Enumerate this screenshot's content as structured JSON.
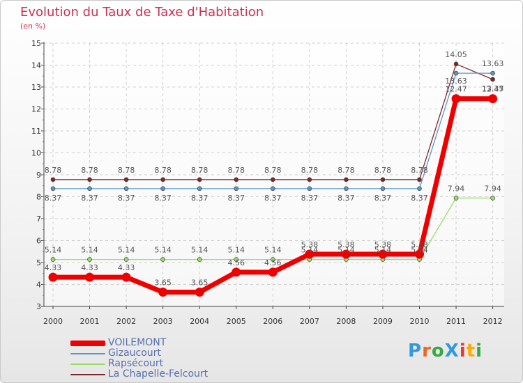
{
  "title": "Evolution du Taux de Taxe d'Habitation",
  "subtitle": "(en %)",
  "logo": {
    "text": "ProXiti",
    "colors": [
      "#3399dd",
      "#ee6622",
      "#33aa44",
      "#3399dd",
      "#ee3333",
      "#ffaa00",
      "#33aa44"
    ]
  },
  "chart_data": {
    "type": "line",
    "title": "Evolution du Taux de Taxe d'Habitation",
    "ylabel": "(en %)",
    "xlabel": "",
    "ylim": [
      3,
      15
    ],
    "yticks": [
      "3",
      "4",
      "5",
      "6",
      "7",
      "8",
      "9",
      "10",
      "11",
      "12",
      "13",
      "14",
      "15"
    ],
    "categories": [
      "2000",
      "2001",
      "2002",
      "2003",
      "2004",
      "2005",
      "2006",
      "2007",
      "2008",
      "2009",
      "2010",
      "2011",
      "2012"
    ],
    "series": [
      {
        "name": "VOILEMONT",
        "color": "#ee0000",
        "values": [
          4.33,
          4.33,
          4.33,
          3.65,
          3.65,
          4.56,
          4.56,
          5.38,
          5.38,
          5.38,
          5.38,
          12.47,
          12.47
        ],
        "labels": [
          "4.33",
          "4.33",
          "4.33",
          "3.65",
          "3.65",
          "4.56",
          "4.56",
          "5.38",
          "5.38",
          "5.38",
          "5.38",
          "12.47",
          "12.47"
        ]
      },
      {
        "name": "Gizaucourt",
        "color": "#5b96c8",
        "values": [
          8.37,
          8.37,
          8.37,
          8.37,
          8.37,
          8.37,
          8.37,
          8.37,
          8.37,
          8.37,
          8.37,
          13.63,
          13.63
        ],
        "labels": [
          "8.37",
          "8.37",
          "8.37",
          "8.37",
          "8.37",
          "8.37",
          "8.37",
          "8.37",
          "8.37",
          "8.37",
          "8.37",
          "13.63",
          "13.63"
        ]
      },
      {
        "name": "Rapsécourt",
        "color": "#99dd66",
        "values": [
          5.14,
          5.14,
          5.14,
          5.14,
          5.14,
          5.14,
          5.14,
          5.14,
          5.14,
          5.14,
          5.14,
          7.94,
          7.94
        ],
        "labels": [
          "5.14",
          "5.14",
          "5.14",
          "5.14",
          "5.14",
          "5.14",
          "5.14",
          "5.14",
          "5.14",
          "5.14",
          "5.14",
          "7.94",
          "7.94"
        ]
      },
      {
        "name": "La Chapelle-Felcourt",
        "color": "#7a2a2a",
        "values": [
          8.78,
          8.78,
          8.78,
          8.78,
          8.78,
          8.78,
          8.78,
          8.78,
          8.78,
          8.78,
          8.78,
          14.05,
          13.35
        ],
        "labels": [
          "8.78",
          "8.78",
          "8.78",
          "8.78",
          "8.78",
          "8.78",
          "8.78",
          "8.78",
          "8.78",
          "8.78",
          "8.78",
          "14.05",
          "13.35"
        ]
      }
    ]
  }
}
